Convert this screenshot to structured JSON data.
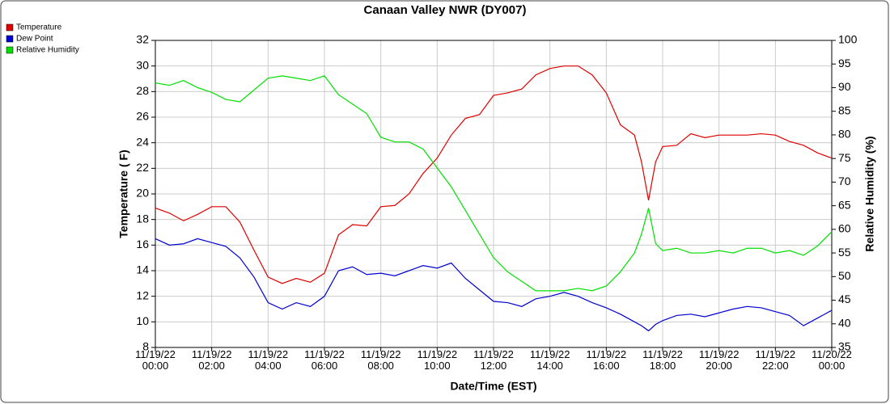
{
  "chart_data": {
    "type": "line",
    "title": "Canaan Valley NWR (DY007)",
    "x_label": "Date/Time (EST)",
    "y_label": "Temperature ( F)",
    "y2_label": "Relative Humidity (%)",
    "x": [
      0,
      0.5,
      1,
      1.5,
      2,
      2.5,
      3,
      3.5,
      4,
      4.5,
      5,
      5.5,
      6,
      6.5,
      7,
      7.5,
      8,
      8.5,
      9,
      9.5,
      10,
      10.5,
      11,
      11.5,
      12,
      12.5,
      13,
      13.5,
      14,
      14.5,
      15,
      15.5,
      16,
      16.5,
      17,
      17.25,
      17.5,
      17.75,
      18,
      18.5,
      19,
      19.5,
      20,
      20.5,
      21,
      21.5,
      22,
      22.5,
      23,
      23.5,
      24
    ],
    "series": [
      {
        "name": "Temperature",
        "color": "#e00000",
        "values": [
          18.9,
          18.5,
          17.9,
          18.4,
          19.0,
          19.0,
          17.8,
          15.6,
          13.5,
          13.0,
          13.4,
          13.1,
          13.8,
          16.8,
          17.6,
          17.5,
          19.0,
          19.1,
          20.0,
          21.6,
          22.8,
          24.6,
          25.9,
          26.2,
          27.7,
          27.9,
          28.2,
          29.3,
          29.8,
          30.0,
          30.0,
          29.3,
          27.9,
          25.4,
          24.6,
          22.5,
          19.5,
          22.5,
          23.7,
          23.8,
          24.7,
          24.4,
          24.6,
          24.6,
          24.6,
          24.7,
          24.6,
          24.1,
          23.8,
          23.2,
          22.8
        ]
      },
      {
        "name": "Dew Point",
        "color": "#0000d0",
        "values": [
          16.5,
          16.0,
          16.1,
          16.5,
          16.2,
          15.9,
          15.0,
          13.5,
          11.5,
          11.0,
          11.5,
          11.2,
          12.0,
          14.0,
          14.3,
          13.7,
          13.8,
          13.6,
          14.0,
          14.4,
          14.2,
          14.6,
          13.4,
          12.5,
          11.6,
          11.5,
          11.2,
          11.8,
          12.0,
          12.3,
          12.0,
          11.5,
          11.1,
          10.6,
          10.0,
          9.7,
          9.3,
          9.8,
          10.1,
          10.5,
          10.6,
          10.4,
          10.7,
          11.0,
          11.2,
          11.1,
          10.8,
          10.5,
          9.7,
          10.3,
          10.9
        ]
      },
      {
        "name": "Relative Humidity",
        "color": "#00e000",
        "axis": "y2",
        "values": [
          91,
          90.5,
          91.5,
          90,
          89,
          87.5,
          87,
          89.5,
          92,
          92.5,
          92,
          91.5,
          92.5,
          88.5,
          86.5,
          84.5,
          79.5,
          78.5,
          78.5,
          77,
          73,
          69,
          64,
          59,
          54,
          51,
          49,
          47,
          47,
          47,
          47.5,
          47,
          48,
          51,
          55,
          59,
          64.5,
          57,
          55.5,
          56,
          55,
          55,
          55.5,
          55,
          56,
          56,
          55,
          55.5,
          54.5,
          56.5,
          59.5
        ]
      }
    ],
    "xlim": [
      0,
      24
    ],
    "xticks": [
      {
        "value": 0,
        "label": "11/19/22 00:00"
      },
      {
        "value": 2,
        "label": "11/19/22 02:00"
      },
      {
        "value": 4,
        "label": "11/19/22 04:00"
      },
      {
        "value": 6,
        "label": "11/19/22 06:00"
      },
      {
        "value": 8,
        "label": "11/19/22 08:00"
      },
      {
        "value": 10,
        "label": "11/19/22 10:00"
      },
      {
        "value": 12,
        "label": "11/19/22 12:00"
      },
      {
        "value": 14,
        "label": "11/19/22 14:00"
      },
      {
        "value": 16,
        "label": "11/19/22 16:00"
      },
      {
        "value": 18,
        "label": "11/19/22 18:00"
      },
      {
        "value": 20,
        "label": "11/19/22 20:00"
      },
      {
        "value": 22,
        "label": "11/19/22 22:00"
      },
      {
        "value": 24,
        "label": "11/20/22 00:00"
      }
    ],
    "ylim": [
      8,
      32
    ],
    "yticks": [
      8,
      10,
      12,
      14,
      16,
      18,
      20,
      22,
      24,
      26,
      28,
      30,
      32
    ],
    "y2lim": [
      35,
      100
    ],
    "y2ticks": [
      35,
      40,
      45,
      50,
      55,
      60,
      65,
      70,
      75,
      80,
      85,
      90,
      95,
      100
    ],
    "grid": true,
    "legend": "top-left"
  }
}
